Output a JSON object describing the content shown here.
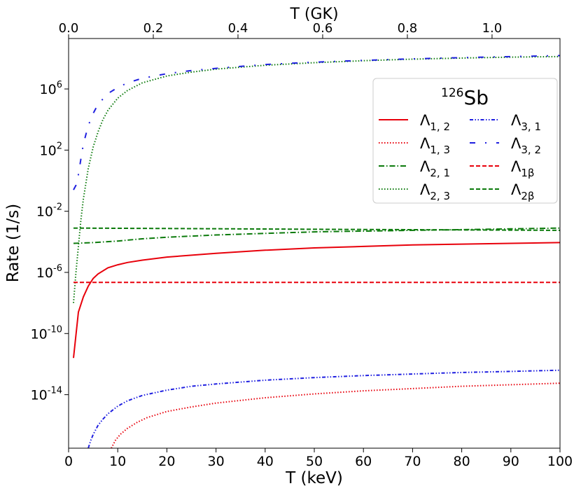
{
  "chart_data": {
    "type": "line",
    "title": "126Sb",
    "title_mass": "126",
    "title_element": "Sb",
    "xlabel": "T (keV)",
    "ylabel": "Rate (1/s)",
    "top_xlabel": "T (GK)",
    "xlim": [
      0,
      100
    ],
    "ylim_log10": [
      -17.5,
      9.3
    ],
    "x_ticks": [
      "0",
      "10",
      "20",
      "30",
      "40",
      "50",
      "60",
      "70",
      "80",
      "90",
      "100"
    ],
    "top_ticks": [
      "0.0",
      "0.2",
      "0.4",
      "0.6",
      "0.8",
      "1.0"
    ],
    "y_ticks": [
      {
        "base": "10",
        "exp": "6"
      },
      {
        "base": "10",
        "exp": "2"
      },
      {
        "base": "10",
        "exp": "-2"
      },
      {
        "base": "10",
        "exp": "-6"
      },
      {
        "base": "10",
        "exp": "-10"
      },
      {
        "base": "10",
        "exp": "-14"
      }
    ],
    "legend_position": "upper-right",
    "series": [
      {
        "name": "Λ_{1,2}",
        "lam": "Λ",
        "sub": "1, 2",
        "color": "#e8000b",
        "dash": "solid",
        "x": [
          1,
          2,
          3,
          4,
          5,
          6,
          8,
          10,
          12,
          15,
          20,
          30,
          40,
          50,
          60,
          70,
          80,
          90,
          100
        ],
        "log10y": [
          -11.6,
          -8.6,
          -7.6,
          -6.9,
          -6.4,
          -6.1,
          -5.7,
          -5.5,
          -5.35,
          -5.2,
          -5.0,
          -4.75,
          -4.55,
          -4.4,
          -4.3,
          -4.2,
          -4.15,
          -4.1,
          -4.05
        ]
      },
      {
        "name": "Λ_{1,3}",
        "lam": "Λ",
        "sub": "1, 3",
        "color": "#e8000b",
        "dash": "dotted",
        "x": [
          8.7,
          9.5,
          10.5,
          12,
          14,
          16,
          20,
          25,
          30,
          40,
          50,
          60,
          70,
          80,
          90,
          100
        ],
        "log10y": [
          -17.5,
          -17.0,
          -16.6,
          -16.2,
          -15.8,
          -15.5,
          -15.1,
          -14.8,
          -14.55,
          -14.2,
          -13.95,
          -13.75,
          -13.6,
          -13.45,
          -13.35,
          -13.25
        ]
      },
      {
        "name": "Λ_{2,1}",
        "lam": "Λ",
        "sub": "2, 1",
        "color": "#0b7a0b",
        "dash": "dashdot",
        "x": [
          1,
          5,
          10,
          15,
          20,
          30,
          40,
          50,
          60,
          70,
          80,
          90,
          100
        ],
        "log10y": [
          -4.1,
          -4.05,
          -3.95,
          -3.8,
          -3.7,
          -3.55,
          -3.45,
          -3.35,
          -3.3,
          -3.25,
          -3.2,
          -3.15,
          -3.1
        ]
      },
      {
        "name": "Λ_{2,3}",
        "lam": "Λ",
        "sub": "2, 3",
        "color": "#0b7a0b",
        "dash": "dotted",
        "x": [
          1,
          1.5,
          2,
          2.5,
          3,
          4,
          5,
          6,
          7,
          8,
          10,
          12,
          15,
          20,
          25,
          30,
          40,
          50,
          60,
          70,
          80,
          90,
          100
        ],
        "log10y": [
          -8.0,
          -6.0,
          -4.3,
          -2.6,
          -1.2,
          0.8,
          2.2,
          3.2,
          4.0,
          4.6,
          5.4,
          5.9,
          6.4,
          6.85,
          7.1,
          7.3,
          7.55,
          7.72,
          7.85,
          7.95,
          8.02,
          8.08,
          8.12
        ]
      },
      {
        "name": "Λ_{3,1}",
        "lam": "Λ",
        "sub": "3, 1",
        "color": "#1f1fe0",
        "dash": "dashdotdot",
        "x": [
          4.0,
          4.5,
          5,
          6,
          7,
          8,
          10,
          12,
          15,
          20,
          25,
          30,
          40,
          50,
          60,
          70,
          80,
          90,
          100
        ],
        "log10y": [
          -17.5,
          -17.0,
          -16.6,
          -16.0,
          -15.6,
          -15.25,
          -14.75,
          -14.4,
          -14.05,
          -13.7,
          -13.45,
          -13.3,
          -13.05,
          -12.88,
          -12.75,
          -12.65,
          -12.55,
          -12.48,
          -12.4
        ]
      },
      {
        "name": "Λ_{3,2}",
        "lam": "Λ",
        "sub": "3, 2",
        "color": "#1f1fe0",
        "dash": "loosedashdot",
        "x": [
          1,
          1.5,
          2,
          2.5,
          3,
          4,
          5,
          6,
          8,
          10,
          12,
          15,
          20,
          25,
          30,
          40,
          50,
          60,
          70,
          80,
          90,
          100
        ],
        "log10y": [
          -0.6,
          -0.3,
          0.4,
          1.4,
          2.4,
          3.6,
          4.4,
          5.0,
          5.7,
          6.1,
          6.4,
          6.7,
          7.0,
          7.2,
          7.35,
          7.6,
          7.75,
          7.87,
          7.97,
          8.05,
          8.12,
          8.18
        ]
      },
      {
        "name": "Λ_{1β}",
        "lam": "Λ",
        "sub": "1β",
        "color": "#e8000b",
        "dash": "dashed",
        "x": [
          1,
          100
        ],
        "log10y": [
          -6.65,
          -6.65
        ]
      },
      {
        "name": "Λ_{2β}",
        "lam": "Λ",
        "sub": "2β",
        "color": "#0b7a0b",
        "dash": "dashed",
        "x": [
          1,
          20,
          50,
          100
        ],
        "log10y": [
          -3.1,
          -3.13,
          -3.18,
          -3.25
        ]
      }
    ]
  }
}
